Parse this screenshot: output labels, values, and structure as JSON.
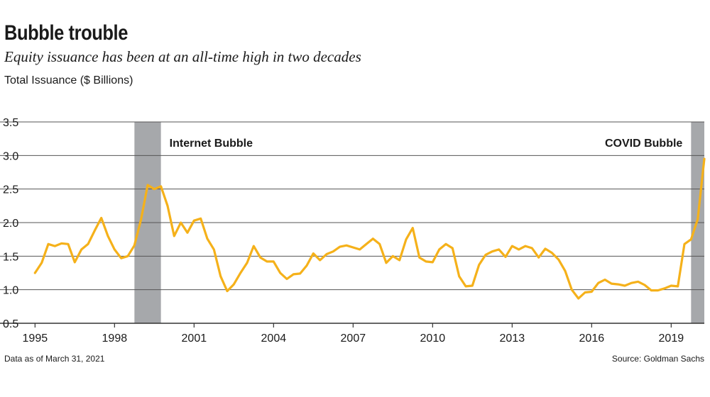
{
  "header": {
    "title": "Bubble trouble",
    "subtitle": "Equity issuance has been at an all-time high in two decades",
    "ylabel": "Total Issuance ($ Billions)"
  },
  "footer": {
    "note": "Data as of March 31, 2021",
    "source": "Source: Goldman Sachs"
  },
  "colors": {
    "line": "#f5b11a",
    "band": "#a6a8ab",
    "grid": "#555555",
    "axis": "#333333"
  },
  "chart_data": {
    "type": "line",
    "title": "Bubble trouble",
    "ylabel": "Total Issuance ($ Billions)",
    "ylim": [
      0.5,
      3.5
    ],
    "xlim": [
      1994.75,
      2020.25
    ],
    "y_ticks": [
      0.5,
      1.0,
      1.5,
      2.0,
      2.5,
      3.0,
      3.5
    ],
    "y_tick_labels": [
      "0.5",
      "1.0",
      "1.5",
      "2.0",
      "2.5",
      "3.0",
      "3.5"
    ],
    "x_ticks": [
      1995,
      1998,
      2001,
      2004,
      2007,
      2010,
      2013,
      2016,
      2019
    ],
    "x_tick_labels": [
      "1995",
      "1998",
      "2001",
      "2004",
      "2007",
      "2010",
      "2013",
      "2016",
      "2019"
    ],
    "grid": true,
    "legend": "none",
    "shaded_regions": [
      {
        "label": "Internet Bubble",
        "x_start": 1998.75,
        "x_end": 1999.75
      },
      {
        "label": "COVID Bubble",
        "x_start": 2019.75,
        "x_end": 2020.25
      }
    ],
    "series": [
      {
        "x": [
          1995.0,
          1995.25,
          1995.5,
          1995.75,
          1996.0,
          1996.25,
          1996.5,
          1996.75,
          1997.0,
          1997.25,
          1997.5,
          1997.75,
          1998.0,
          1998.25,
          1998.5,
          1998.75,
          1999.0,
          1999.25,
          1999.5,
          1999.75,
          2000.0,
          2000.25,
          2000.5,
          2000.75,
          2001.0,
          2001.25,
          2001.5,
          2001.75,
          2002.0,
          2002.25,
          2002.5,
          2002.75,
          2003.0,
          2003.25,
          2003.5,
          2003.75,
          2004.0,
          2004.25,
          2004.5,
          2004.75,
          2005.0,
          2005.25,
          2005.5,
          2005.75,
          2006.0,
          2006.25,
          2006.5,
          2006.75,
          2007.0,
          2007.25,
          2007.5,
          2007.75,
          2008.0,
          2008.25,
          2008.5,
          2008.75,
          2009.0,
          2009.25,
          2009.5,
          2009.75,
          2010.0,
          2010.25,
          2010.5,
          2010.75,
          2011.0,
          2011.25,
          2011.5,
          2011.75,
          2012.0,
          2012.25,
          2012.5,
          2012.75,
          2013.0,
          2013.25,
          2013.5,
          2013.75,
          2014.0,
          2014.25,
          2014.5,
          2014.75,
          2015.0,
          2015.25,
          2015.5,
          2015.75,
          2016.0,
          2016.25,
          2016.5,
          2016.75,
          2017.0,
          2017.25,
          2017.5,
          2017.75,
          2018.0,
          2018.25,
          2018.5,
          2018.75,
          2019.0,
          2019.25,
          2019.5,
          2019.75,
          2020.0,
          2020.25
        ],
        "values": [
          1.25,
          1.4,
          1.68,
          1.65,
          1.69,
          1.68,
          1.41,
          1.6,
          1.68,
          1.88,
          2.07,
          1.8,
          1.6,
          1.47,
          1.5,
          1.66,
          2.05,
          2.56,
          2.5,
          2.54,
          2.25,
          1.8,
          2.0,
          1.85,
          2.03,
          2.06,
          1.76,
          1.6,
          1.2,
          0.98,
          1.08,
          1.25,
          1.4,
          1.65,
          1.48,
          1.42,
          1.42,
          1.25,
          1.16,
          1.23,
          1.24,
          1.36,
          1.54,
          1.44,
          1.53,
          1.57,
          1.64,
          1.66,
          1.63,
          1.6,
          1.68,
          1.76,
          1.68,
          1.4,
          1.5,
          1.44,
          1.75,
          1.92,
          1.48,
          1.42,
          1.41,
          1.6,
          1.68,
          1.62,
          1.2,
          1.05,
          1.06,
          1.37,
          1.52,
          1.57,
          1.6,
          1.49,
          1.65,
          1.6,
          1.65,
          1.62,
          1.48,
          1.61,
          1.55,
          1.45,
          1.28,
          1.0,
          0.87,
          0.96,
          0.97,
          1.1,
          1.15,
          1.09,
          1.08,
          1.06,
          1.1,
          1.12,
          1.07,
          0.99,
          0.99,
          1.02,
          1.06,
          1.05,
          1.68,
          1.75,
          2.05,
          2.95
        ]
      }
    ]
  }
}
